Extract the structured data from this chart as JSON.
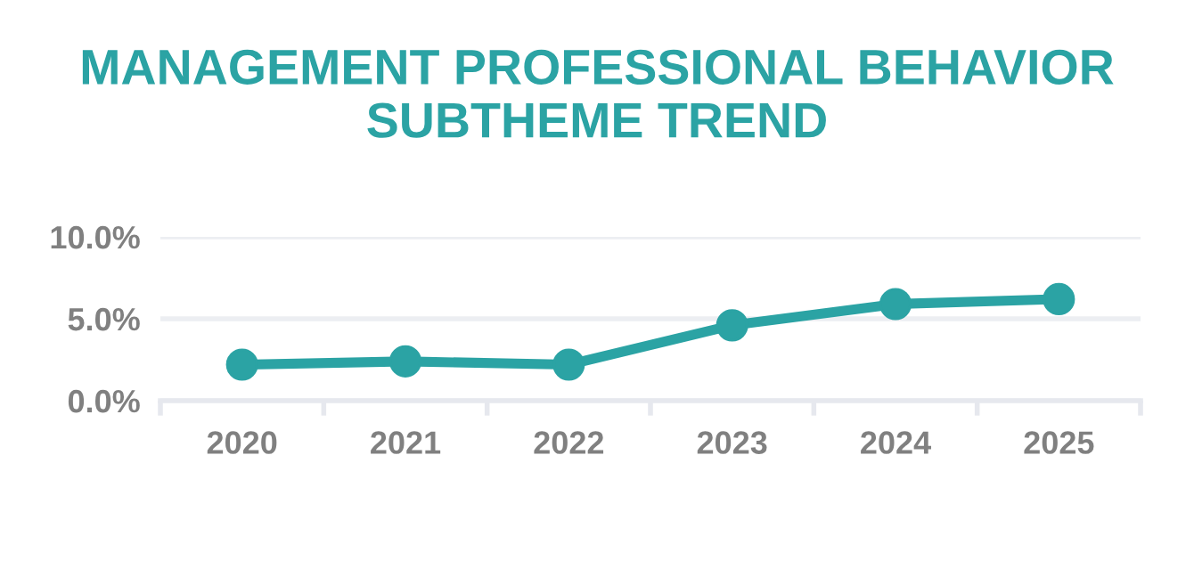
{
  "chart_data": {
    "type": "line",
    "title": "MANAGEMENT PROFESSIONAL BEHAVIOR\nSUBTHEME TREND",
    "categories": [
      "2020",
      "2021",
      "2022",
      "2023",
      "2024",
      "2025"
    ],
    "series": [
      {
        "color": "#2ba3a4",
        "values": [
          2.2,
          2.4,
          2.2,
          4.6,
          5.9,
          6.2
        ]
      }
    ],
    "ylim": [
      0,
      10
    ],
    "yticks": [
      {
        "value": 0,
        "label": "0.0%"
      },
      {
        "value": 5,
        "label": "5.0%"
      },
      {
        "value": 10,
        "label": "10.0%"
      }
    ],
    "grid": "y",
    "marker": "circle",
    "line_style": "solid"
  }
}
